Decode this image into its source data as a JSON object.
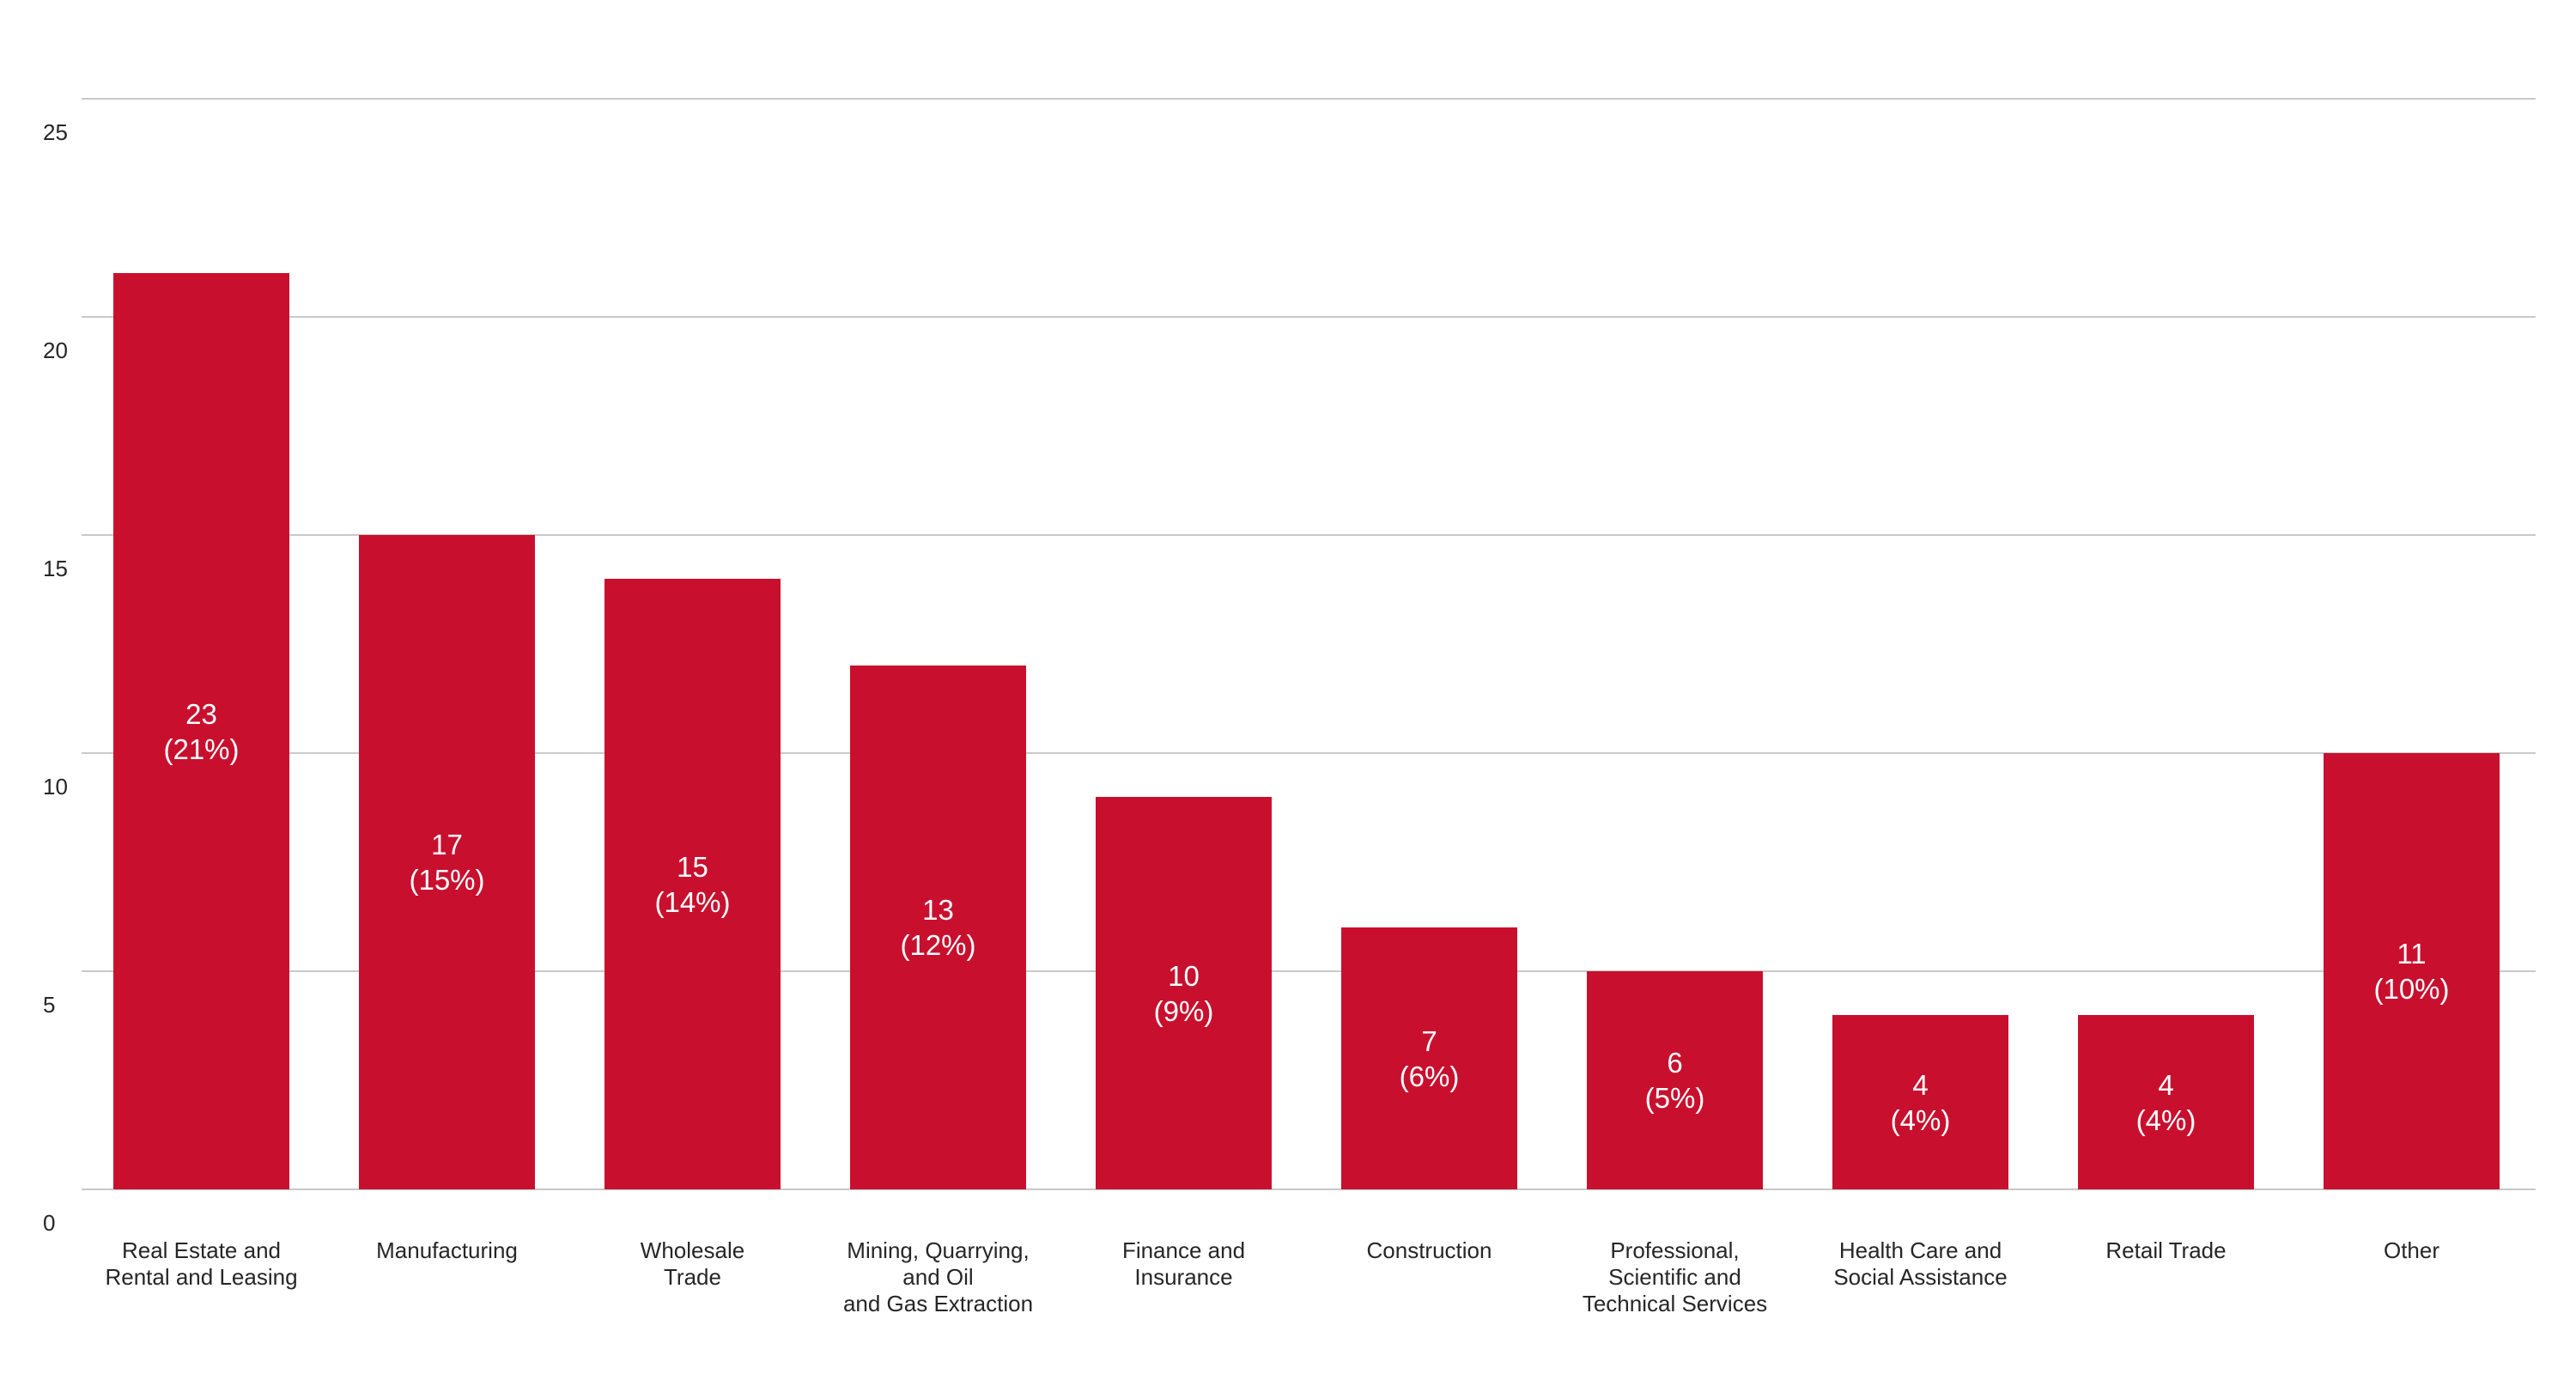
{
  "chart_data": {
    "type": "bar",
    "title": "",
    "xlabel": "",
    "ylabel": "",
    "ylim": [
      0,
      25
    ],
    "yticks": [
      0,
      5,
      10,
      15,
      20,
      25
    ],
    "grid": "horizontal",
    "legend": "none",
    "background": "#ffffff",
    "categories": [
      [
        "Real Estate and",
        "Rental and Leasing"
      ],
      [
        "Manufacturing"
      ],
      [
        "Wholesale",
        "Trade"
      ],
      [
        "Mining, Quarrying,",
        "and Oil",
        "and Gas Extraction"
      ],
      [
        "Finance and",
        "Insurance"
      ],
      [
        "Construction"
      ],
      [
        "Professional,",
        "Scientific and",
        "Technical Services"
      ],
      [
        "Health Care and",
        "Social Assistance"
      ],
      [
        "Retail Trade"
      ],
      [
        "Other"
      ]
    ],
    "counts": [
      23,
      17,
      15,
      13,
      10,
      7,
      6,
      4,
      4,
      11
    ],
    "percents": [
      21,
      15,
      14,
      12,
      9,
      6,
      5,
      4,
      4,
      10
    ],
    "bar_label_format": "count newline (percent%)",
    "plotted_values": "percents",
    "colors": {
      "bar": "#C8102E",
      "gridline": "#C9C9C9",
      "tick_label": "#262626",
      "category_label": "#262626",
      "value_label": "#FFFFFF"
    }
  }
}
